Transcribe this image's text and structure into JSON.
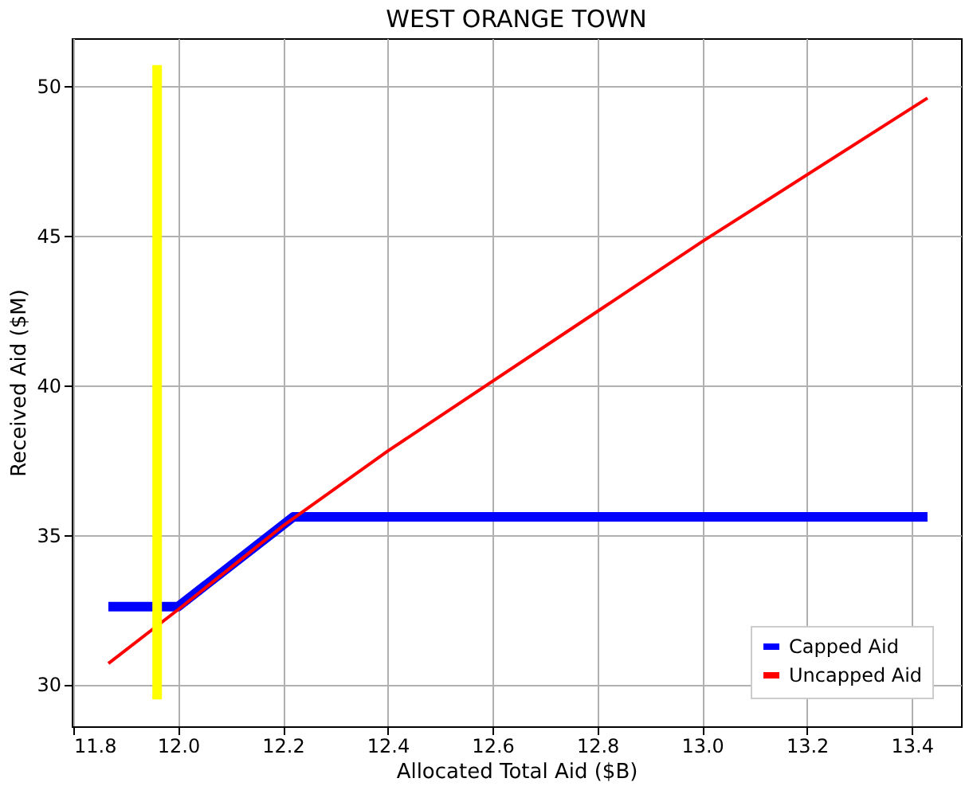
{
  "chart_data": {
    "type": "line",
    "title": "WEST ORANGE TOWN",
    "xlabel": "Allocated Total Aid ($B)",
    "ylabel": "Received Aid ($M)",
    "series": [
      {
        "name": "Capped Aid",
        "color": "#0000ff",
        "x": [
          11.867,
          12.0,
          12.22,
          13.43
        ],
        "values": [
          32.6,
          32.6,
          35.6,
          35.6
        ]
      },
      {
        "name": "Uncapped Aid",
        "color": "#ff0000",
        "x": [
          11.867,
          12.0,
          12.2,
          12.4,
          13.0,
          13.43
        ],
        "values": [
          30.7,
          32.5,
          35.3,
          37.8,
          44.8,
          49.6
        ]
      },
      {
        "color": "#ffff00",
        "x": [
          11.96,
          11.96
        ],
        "values": [
          29.5,
          50.7
        ]
      }
    ],
    "xlim": [
      11.797,
      13.494
    ],
    "xticks": [
      11.8,
      {
        "value": 12,
        "label": "12.0"
      },
      12.2,
      12.4,
      12.6,
      12.8,
      {
        "value": 13,
        "label": "13.0"
      },
      13.2,
      13.4
    ],
    "ylim": [
      28.6,
      51.6
    ],
    "yticks": [
      30,
      35,
      40,
      45,
      50
    ],
    "grid": true,
    "legend": "bottom right",
    "marker": "none",
    "line_style": "solid"
  }
}
